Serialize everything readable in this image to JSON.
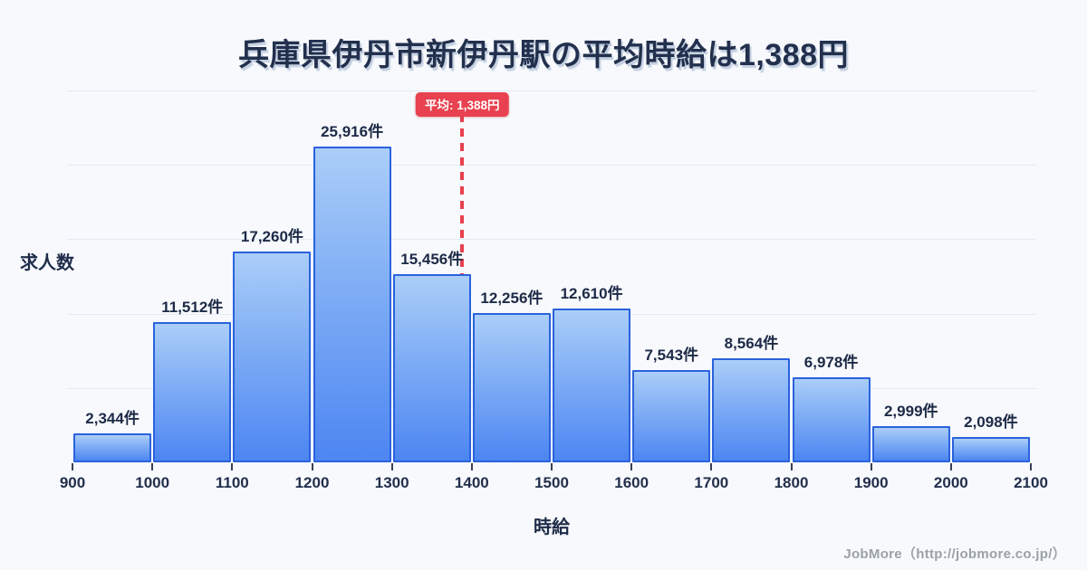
{
  "title": "兵庫県伊丹市新伊丹駅の平均時給は1,388円",
  "average_badge_label": "平均: 1,388円",
  "y_axis_label": "求人数",
  "x_axis_label": "時給",
  "footer_credit": "JobMore（http://jobmore.co.jp/）",
  "colors": {
    "background": "#f7f9fc",
    "title_text": "#22304d",
    "bar_border": "#2a62dd",
    "bar_gradient_top": "#abcef8",
    "bar_gradient_bottom": "#4d86f2",
    "average_red": "#e8414f",
    "gridline": "#e4eaf3",
    "footer_gray": "#9ba1aa"
  },
  "chart_data": {
    "type": "bar",
    "title": "兵庫県伊丹市新伊丹駅の平均時給は1,388円",
    "xlabel": "時給",
    "ylabel": "求人数",
    "x_ticks": [
      "900",
      "1000",
      "1100",
      "1200",
      "1300",
      "1400",
      "1500",
      "1600",
      "1700",
      "1800",
      "1900",
      "2000",
      "2100"
    ],
    "bin_ranges": [
      "900-1000",
      "1000-1100",
      "1100-1200",
      "1200-1300",
      "1300-1400",
      "1400-1500",
      "1500-1600",
      "1600-1700",
      "1700-1800",
      "1800-1900",
      "1900-2000",
      "2000-2100"
    ],
    "values": [
      2344,
      11512,
      17260,
      25916,
      15456,
      12256,
      12610,
      7543,
      8564,
      6978,
      2999,
      2098
    ],
    "value_labels": [
      "2,344件",
      "11,512件",
      "17,260件",
      "25,916件",
      "15,456件",
      "12,256件",
      "12,610件",
      "7,543件",
      "8,564件",
      "6,978件",
      "2,999件",
      "2,098件"
    ],
    "average": 1388,
    "average_label": "平均: 1,388円",
    "ylim": [
      0,
      30500
    ],
    "grid": true,
    "legend": false
  }
}
